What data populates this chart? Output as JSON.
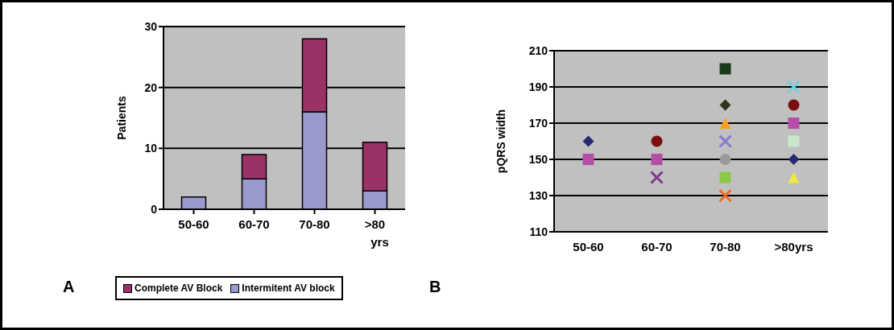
{
  "chart_data": [
    {
      "type": "bar",
      "categories": [
        "50-60",
        "60-70",
        "70-80",
        ">80 yrs"
      ],
      "stacked": true,
      "ylabel": "Patients",
      "ylim": [
        0,
        30
      ],
      "yticks": [
        0,
        10,
        20,
        30
      ],
      "grid": "y",
      "legend": "bottom",
      "annotations": [
        "A"
      ],
      "series": [
        {
          "name": "Intermitent AV block",
          "color": "#9999cc",
          "values": [
            2,
            5,
            16,
            3
          ]
        },
        {
          "name": "Complete AV Block",
          "color": "#993366",
          "values": [
            0,
            4,
            12,
            8
          ]
        }
      ]
    },
    {
      "type": "scatter",
      "categories": [
        "50-60",
        "60-70",
        "70-80",
        ">80yrs"
      ],
      "ylabel": "pQRS width",
      "ylim": [
        110,
        210
      ],
      "yticks": [
        110,
        130,
        150,
        170,
        190,
        210
      ],
      "grid": "y",
      "annotations": [
        "B"
      ],
      "series": [
        {
          "marker": "diamond",
          "x": [
            "50-60",
            "70-80",
            ">80yrs"
          ],
          "values": [
            160,
            180,
            150
          ],
          "colors": [
            "#262a6e",
            "#34341a",
            "#262a6e"
          ]
        },
        {
          "marker": "square",
          "x": [
            "50-60",
            "60-70",
            "70-80",
            ">80yrs",
            ">80yrs",
            "70-80"
          ],
          "values": [
            150,
            150,
            140,
            170,
            160,
            200
          ],
          "colors": [
            "#b44ea6",
            "#b44ea6",
            "#8cc84a",
            "#b44ea6",
            "#cce6cc",
            "#1a3a1a"
          ]
        },
        {
          "marker": "circle",
          "x": [
            "60-70",
            "70-80",
            ">80yrs"
          ],
          "values": [
            160,
            150,
            180
          ],
          "colors": [
            "#7a1010",
            "#999999",
            "#7a1010"
          ]
        },
        {
          "marker": "triangle",
          "x": [
            "70-80",
            ">80yrs"
          ],
          "values": [
            170,
            140
          ],
          "colors": [
            "#f7a020",
            "#eeea40"
          ]
        },
        {
          "marker": "cross",
          "x": [
            "70-80",
            ">80yrs",
            "60-70",
            "70-80"
          ],
          "values": [
            130,
            190,
            140,
            160
          ],
          "colors": [
            "#f26a22",
            "#70d0e0",
            "#7f3a8a",
            "#8a7ac8"
          ]
        }
      ]
    }
  ]
}
